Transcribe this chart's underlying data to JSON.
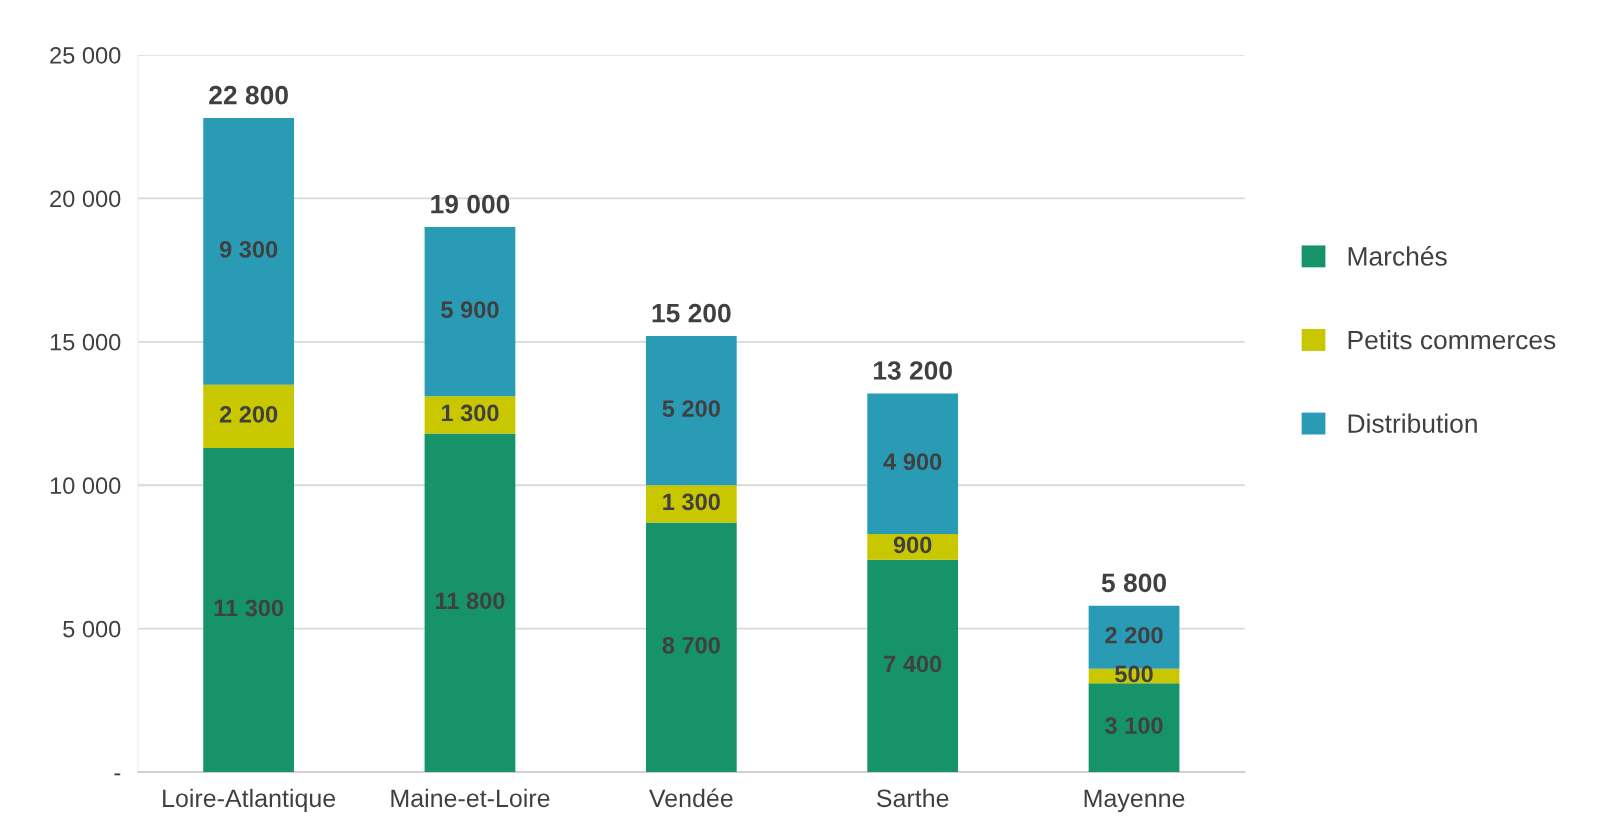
{
  "chart_data": {
    "type": "bar",
    "stacked": true,
    "categories": [
      "Loire-Atlantique",
      "Maine-et-Loire",
      "Vendée",
      "Sarthe",
      "Mayenne"
    ],
    "series": [
      {
        "name": "Marchés",
        "color": "#17936a",
        "values": [
          11300,
          11800,
          8700,
          7400,
          3100
        ],
        "value_labels": [
          "11 300",
          "11 800",
          "8 700",
          "7 400",
          "3 100"
        ]
      },
      {
        "name": "Petits commerces",
        "color": "#c9c800",
        "values": [
          2200,
          1300,
          1300,
          900,
          500
        ],
        "value_labels": [
          "2 200",
          "1 300",
          "1 300",
          "900",
          "500"
        ]
      },
      {
        "name": "Distribution",
        "color": "#2a9bb5",
        "values": [
          9300,
          5900,
          5200,
          4900,
          2200
        ],
        "value_labels": [
          "9 300",
          "5 900",
          "5 200",
          "4 900",
          "2 200"
        ]
      }
    ],
    "totals": [
      "22 800",
      "19 000",
      "15 200",
      "13 200",
      "5 800"
    ],
    "ylim": [
      0,
      25000
    ],
    "yticks": [
      {
        "value": 0,
        "label": "-"
      },
      {
        "value": 5000,
        "label": "5 000"
      },
      {
        "value": 10000,
        "label": "10 000"
      },
      {
        "value": 15000,
        "label": "15 000"
      },
      {
        "value": 20000,
        "label": "20 000"
      },
      {
        "value": 25000,
        "label": "25 000"
      }
    ],
    "grid": "y",
    "legend": "right"
  }
}
